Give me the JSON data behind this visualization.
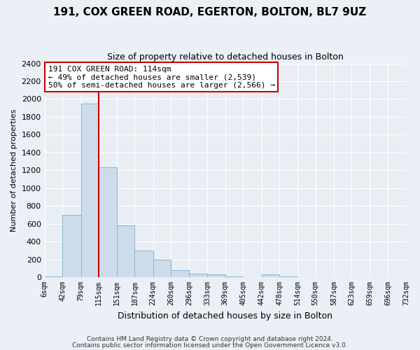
{
  "title": "191, COX GREEN ROAD, EGERTON, BOLTON, BL7 9UZ",
  "subtitle": "Size of property relative to detached houses in Bolton",
  "bar_heights": [
    10,
    700,
    1950,
    1230,
    580,
    300,
    200,
    80,
    40,
    30,
    10,
    0,
    30,
    5,
    0,
    0,
    0,
    0,
    0,
    0
  ],
  "bin_edges": [
    6,
    42,
    79,
    115,
    151,
    187,
    224,
    260,
    296,
    333,
    369,
    405,
    442,
    478,
    514,
    550,
    587,
    623,
    659,
    696,
    732
  ],
  "bin_labels": [
    "6sqm",
    "42sqm",
    "79sqm",
    "115sqm",
    "151sqm",
    "187sqm",
    "224sqm",
    "260sqm",
    "296sqm",
    "333sqm",
    "369sqm",
    "405sqm",
    "442sqm",
    "478sqm",
    "514sqm",
    "550sqm",
    "587sqm",
    "623sqm",
    "659sqm",
    "696sqm",
    "732sqm"
  ],
  "bar_color": "#cddcea",
  "bar_edge_color": "#8ab4cc",
  "vline_x": 115,
  "vline_color": "#cc0000",
  "xlabel": "Distribution of detached houses by size in Bolton",
  "ylabel": "Number of detached properties",
  "ylim": [
    0,
    2400
  ],
  "yticks": [
    0,
    200,
    400,
    600,
    800,
    1000,
    1200,
    1400,
    1600,
    1800,
    2000,
    2200,
    2400
  ],
  "annotation_title": "191 COX GREEN ROAD: 114sqm",
  "annotation_line1": "← 49% of detached houses are smaller (2,539)",
  "annotation_line2": "50% of semi-detached houses are larger (2,566) →",
  "annotation_box_color": "#ffffff",
  "annotation_box_edge_color": "#cc0000",
  "footer1": "Contains HM Land Registry data © Crown copyright and database right 2024.",
  "footer2": "Contains public sector information licensed under the Open Government Licence v3.0.",
  "bg_color": "#eaf0f6",
  "grid_color": "#ffffff",
  "plot_bg_color": "#e8eef4"
}
